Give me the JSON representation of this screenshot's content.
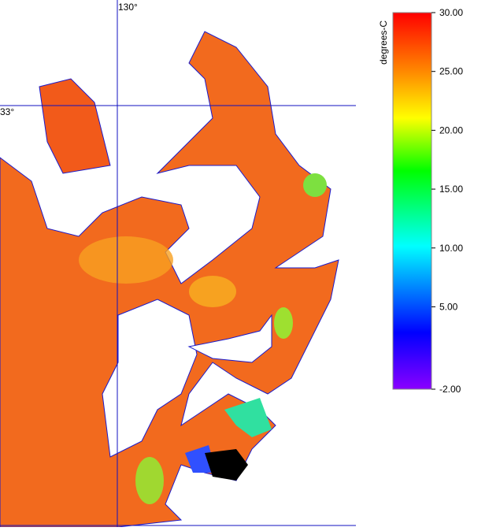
{
  "map": {
    "graticule": {
      "longitude_label": "130°",
      "latitude_label": "33°"
    },
    "colorbar": {
      "title": "degrees-C",
      "range": [
        -2,
        30
      ],
      "ticks": [
        {
          "value": 30,
          "label": "30.00"
        },
        {
          "value": 25,
          "label": "25.00"
        },
        {
          "value": 20,
          "label": "20.00"
        },
        {
          "value": 15,
          "label": "15.00"
        },
        {
          "value": 10,
          "label": "10.00"
        },
        {
          "value": 5,
          "label": "5.00"
        },
        {
          "value": -2,
          "label": "-2.00"
        }
      ]
    }
  }
}
